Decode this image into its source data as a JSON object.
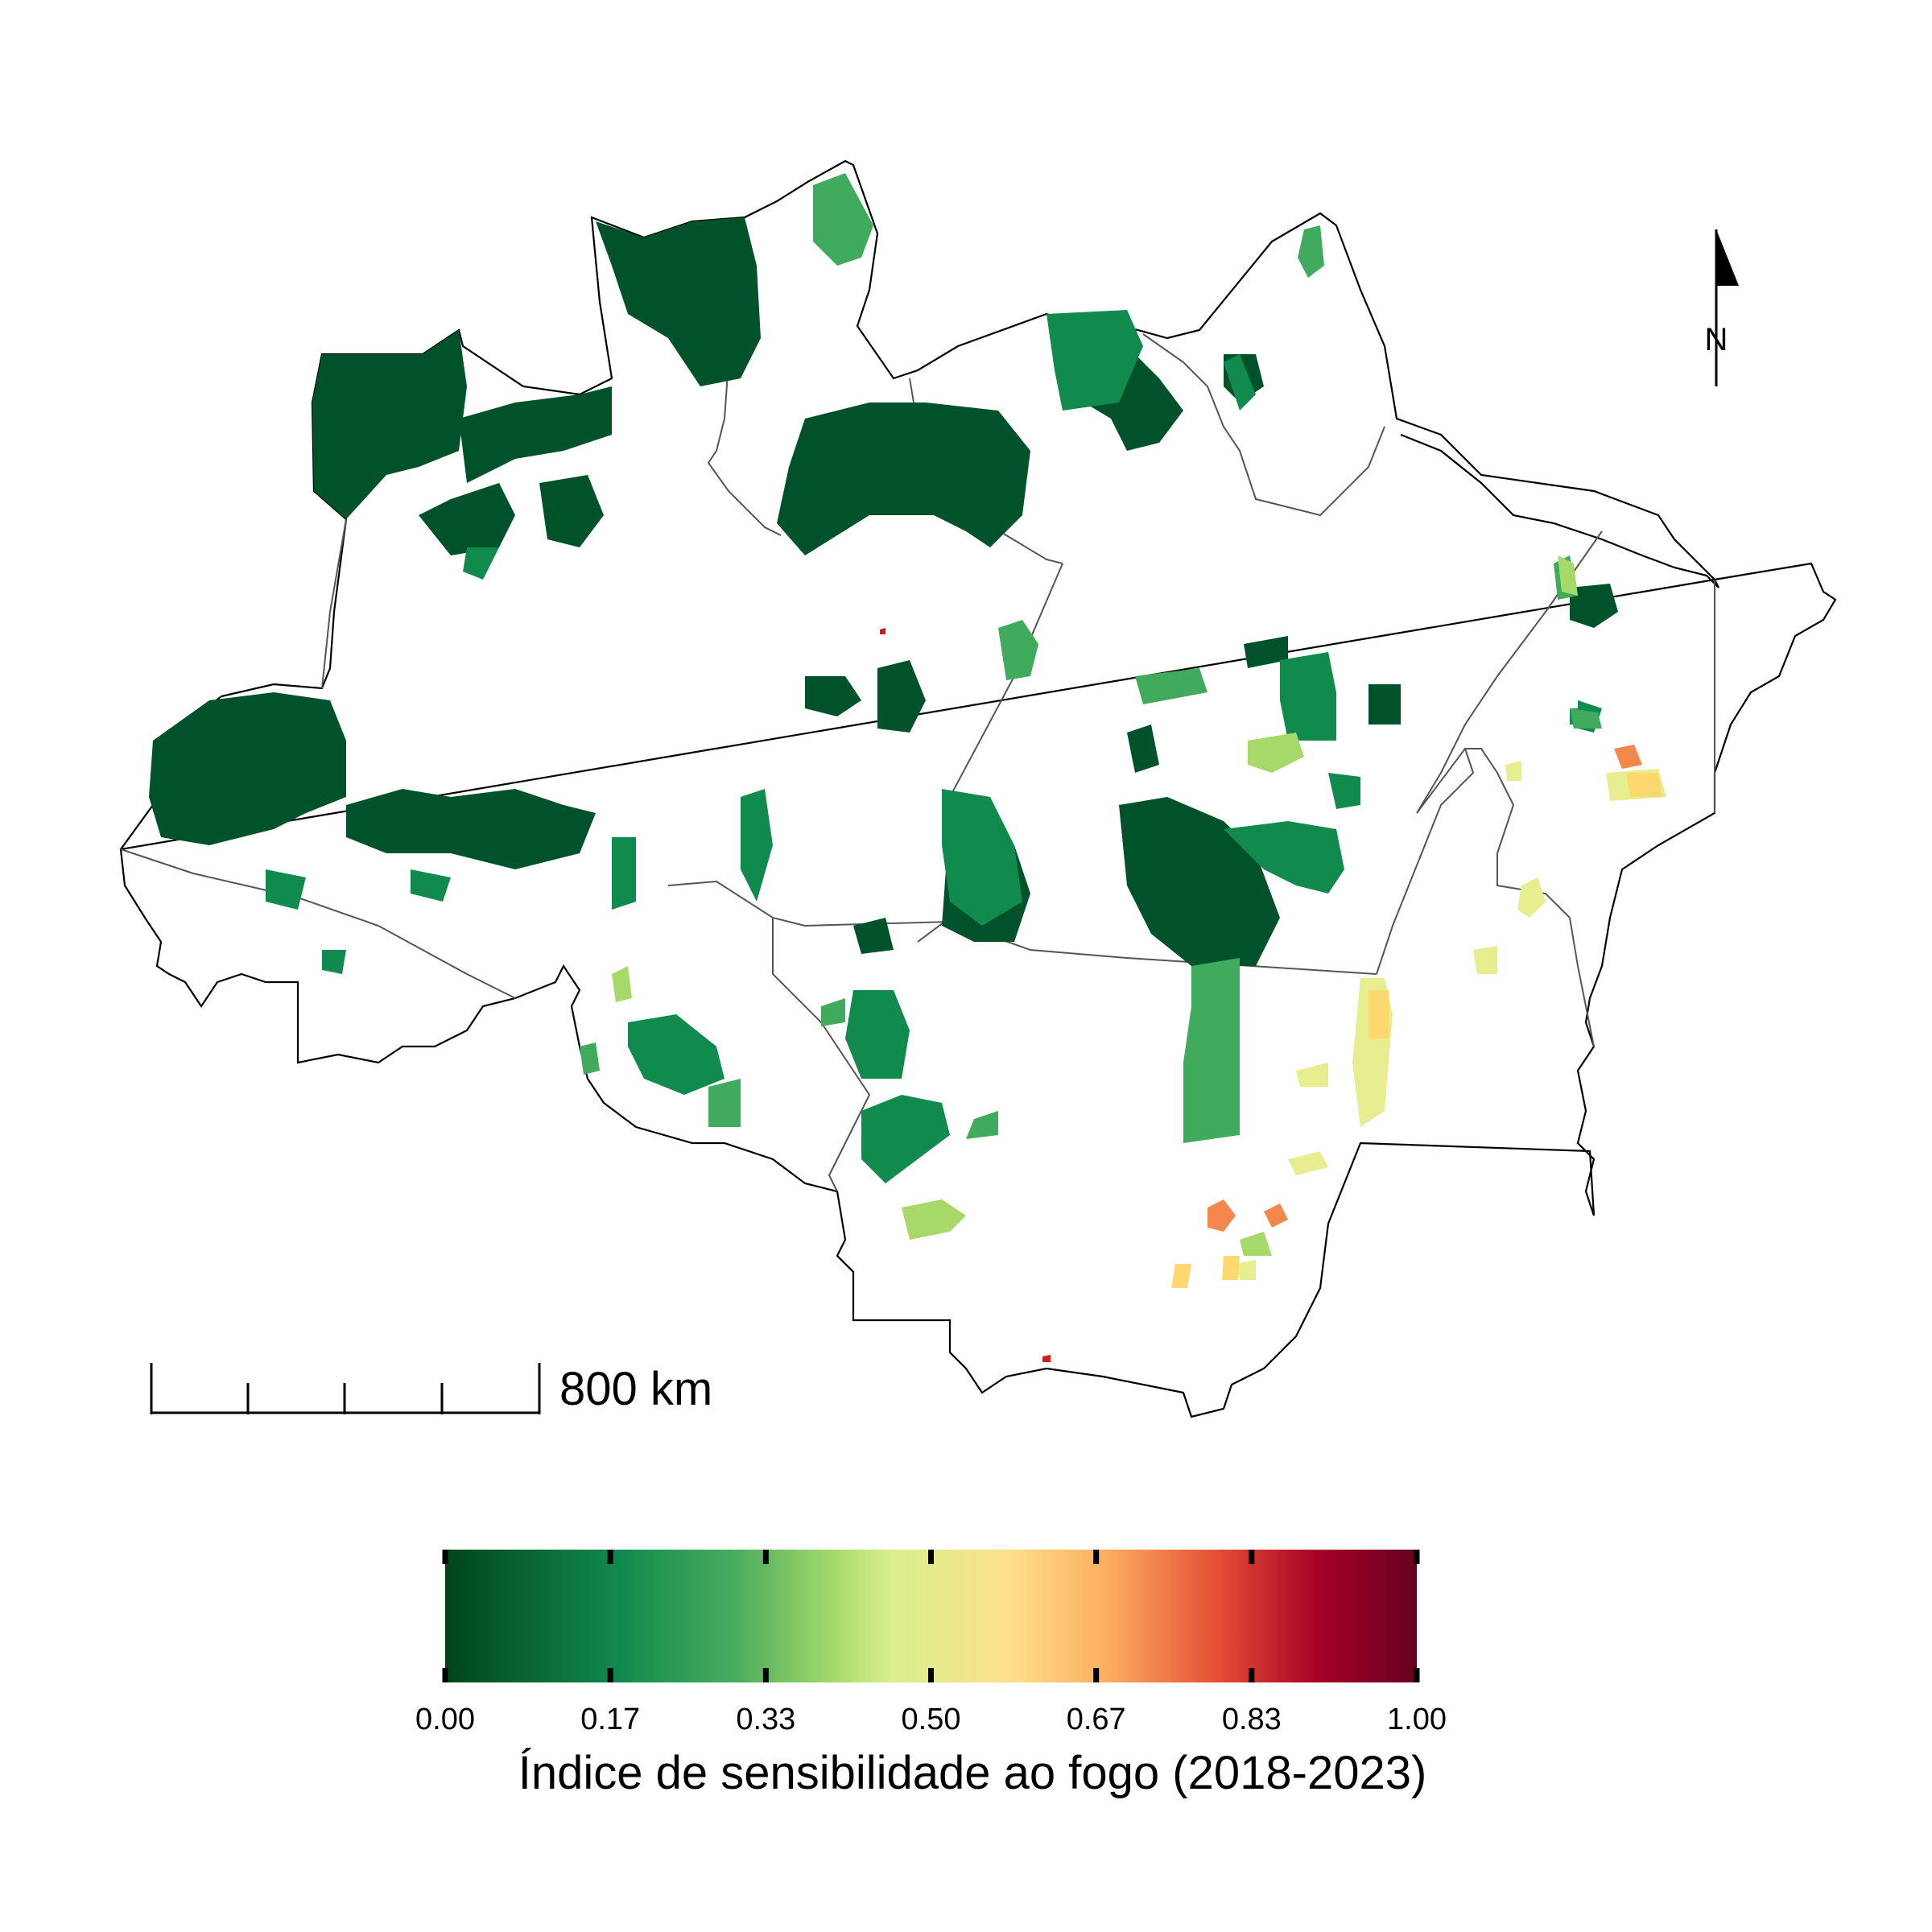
{
  "scale_bar": {
    "label": "800 km"
  },
  "north_arrow": {
    "label": "N"
  },
  "legend": {
    "title": "Índice de sensibilidade ao fogo (2018-2023)",
    "ticks": [
      {
        "value": 0.0,
        "label": "0.00"
      },
      {
        "value": 0.17,
        "label": "0.17"
      },
      {
        "value": 0.33,
        "label": "0.33"
      },
      {
        "value": 0.5,
        "label": "0.50"
      },
      {
        "value": 0.67,
        "label": "0.67"
      },
      {
        "value": 0.83,
        "label": "0.83"
      },
      {
        "value": 1.0,
        "label": "1.00"
      }
    ],
    "gradient_stops": [
      {
        "offset": 0.0,
        "color": "#00441b"
      },
      {
        "offset": 0.18,
        "color": "#118a4e"
      },
      {
        "offset": 0.3,
        "color": "#4aad5e"
      },
      {
        "offset": 0.4,
        "color": "#a6d96a"
      },
      {
        "offset": 0.46,
        "color": "#d9ef8b"
      },
      {
        "offset": 0.58,
        "color": "#fee08b"
      },
      {
        "offset": 0.68,
        "color": "#fdae61"
      },
      {
        "offset": 0.8,
        "color": "#e34a33"
      },
      {
        "offset": 0.9,
        "color": "#a50026"
      },
      {
        "offset": 1.0,
        "color": "#67001f"
      }
    ]
  },
  "colors": {
    "very_low": "#00522a",
    "low": "#118a4e",
    "low_mid": "#41ab5d",
    "mid": "#a6d96a",
    "neutral": "#e6ee8f",
    "mid_high": "#fdd86e",
    "high": "#f4874b",
    "very_high": "#d7191c"
  }
}
